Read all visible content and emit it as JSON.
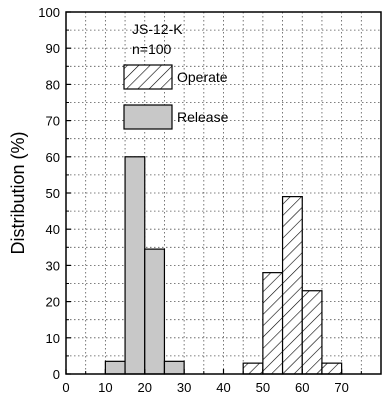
{
  "chart_data": {
    "type": "bar",
    "title": "",
    "xlabel": "",
    "ylabel": "Distribution (%)",
    "xlim": [
      0,
      80
    ],
    "ylim": [
      0,
      100
    ],
    "x_ticks": [
      0,
      10,
      20,
      30,
      40,
      50,
      60,
      70
    ],
    "y_ticks": [
      0,
      10,
      20,
      30,
      40,
      50,
      60,
      70,
      80,
      90,
      100
    ],
    "grid": true,
    "bin_width": 5,
    "annotations": [
      "JS-12-K",
      "n=100"
    ],
    "legend_position": "top-center",
    "series": [
      {
        "name": "Operate",
        "pattern": "diagonal-hatch",
        "color": "#ffffff",
        "bins": [
          {
            "x": 47.5,
            "y": 3
          },
          {
            "x": 52.5,
            "y": 28
          },
          {
            "x": 57.5,
            "y": 49
          },
          {
            "x": 62.5,
            "y": 23
          },
          {
            "x": 67.5,
            "y": 3
          }
        ]
      },
      {
        "name": "Release",
        "pattern": "solid",
        "color": "#c8c8c8",
        "bins": [
          {
            "x": 12.5,
            "y": 3.5
          },
          {
            "x": 17.5,
            "y": 60
          },
          {
            "x": 22.5,
            "y": 34.5
          },
          {
            "x": 27.5,
            "y": 3.5
          }
        ]
      }
    ]
  }
}
